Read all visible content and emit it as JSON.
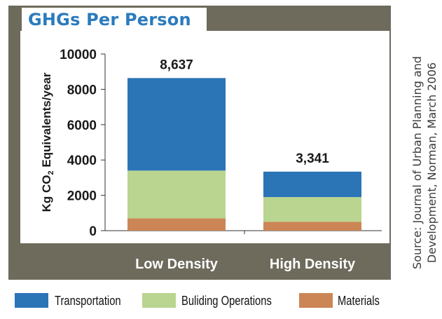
{
  "chart_data": {
    "type": "bar",
    "stacked": true,
    "title": "GHGs Per Person",
    "ylabel": "Kg CO2 Equivalents/year",
    "ylabel_parts": {
      "pre": "Kg CO",
      "sub": "2",
      "post": " Equivalents/year"
    },
    "xlabel": "",
    "ylim": [
      0,
      10000
    ],
    "yticks": [
      0,
      2000,
      4000,
      6000,
      8000,
      10000
    ],
    "ytick_labels": [
      "0",
      "2000",
      "4000",
      "6000",
      "8000",
      "10000"
    ],
    "categories": [
      "Low Density",
      "High Density"
    ],
    "series": [
      {
        "name": "Materials",
        "color": "#cc8555",
        "values": [
          700,
          500
        ]
      },
      {
        "name": "Buliding Operations",
        "color": "#b9d58f",
        "values": [
          2700,
          1400
        ]
      },
      {
        "name": "Transportation",
        "color": "#2b74b6",
        "values": [
          5237,
          1441
        ]
      }
    ],
    "totals": [
      8637,
      3341
    ],
    "total_labels": [
      "8,637",
      "3,341"
    ],
    "legend": [
      "Transportation",
      "Buliding Operations",
      "Materials"
    ],
    "legend_position": "bottom",
    "source_lines": [
      "Source: Journal of Urban Planning and",
      "Development, Norman, March 2006"
    ]
  },
  "colors": {
    "frame": "#6e6a5c",
    "title": "#2b7bbd"
  }
}
